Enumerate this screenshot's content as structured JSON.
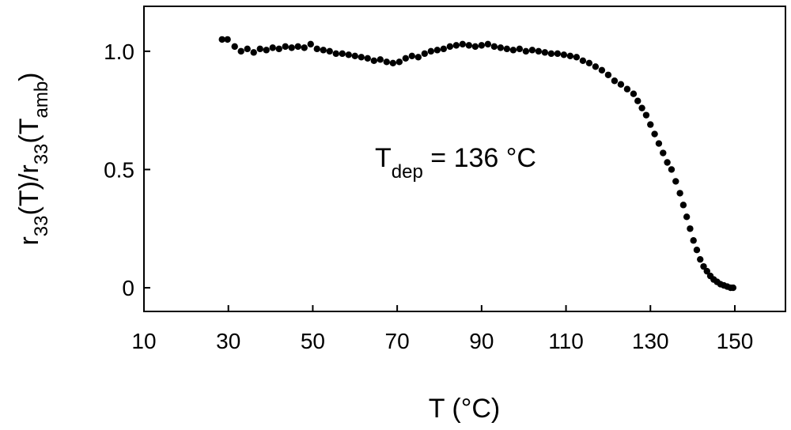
{
  "chart_data": {
    "type": "scatter",
    "title": "",
    "xlabel": "T (°C)",
    "ylabel": {
      "parts": [
        {
          "text": "r",
          "sub": false
        },
        {
          "text": "33",
          "sub": true
        },
        {
          "text": "(T)/r",
          "sub": false
        },
        {
          "text": "33",
          "sub": true
        },
        {
          "text": "(T",
          "sub": false
        },
        {
          "text": "amb",
          "sub": true
        },
        {
          "text": ")",
          "sub": false
        }
      ]
    },
    "annotation": {
      "base": "T",
      "sub": "dep",
      "rest": " = 136 °C"
    },
    "xlim": [
      10,
      162
    ],
    "ylim": [
      -0.1,
      1.19
    ],
    "x_ticks": [
      10,
      30,
      50,
      70,
      90,
      110,
      130,
      150
    ],
    "y_ticks": [
      0,
      0.5,
      1.0
    ],
    "x_tick_labels": [
      "10",
      "30",
      "50",
      "70",
      "90",
      "110",
      "130",
      "150"
    ],
    "y_tick_labels": [
      "0",
      "0.5",
      "1.0"
    ],
    "grid": false,
    "marker_color": "#000000",
    "points": [
      [
        28.5,
        1.05
      ],
      [
        29.8,
        1.05
      ],
      [
        31.5,
        1.02
      ],
      [
        33.0,
        1.0
      ],
      [
        34.5,
        1.01
      ],
      [
        36.0,
        0.995
      ],
      [
        37.5,
        1.01
      ],
      [
        39.0,
        1.005
      ],
      [
        40.5,
        1.015
      ],
      [
        42.0,
        1.01
      ],
      [
        43.5,
        1.02
      ],
      [
        45.0,
        1.015
      ],
      [
        46.5,
        1.02
      ],
      [
        48.0,
        1.015
      ],
      [
        49.5,
        1.03
      ],
      [
        51.0,
        1.01
      ],
      [
        52.5,
        1.005
      ],
      [
        54.0,
        1.0
      ],
      [
        55.5,
        0.99
      ],
      [
        57.0,
        0.99
      ],
      [
        58.5,
        0.985
      ],
      [
        60.0,
        0.98
      ],
      [
        61.5,
        0.975
      ],
      [
        63.0,
        0.97
      ],
      [
        64.5,
        0.96
      ],
      [
        66.0,
        0.965
      ],
      [
        67.5,
        0.955
      ],
      [
        69.0,
        0.95
      ],
      [
        70.5,
        0.955
      ],
      [
        72.0,
        0.97
      ],
      [
        73.5,
        0.98
      ],
      [
        75.0,
        0.975
      ],
      [
        76.5,
        0.99
      ],
      [
        78.0,
        1.0
      ],
      [
        79.5,
        1.005
      ],
      [
        81.0,
        1.01
      ],
      [
        82.5,
        1.02
      ],
      [
        84.0,
        1.025
      ],
      [
        85.5,
        1.03
      ],
      [
        87.0,
        1.025
      ],
      [
        88.5,
        1.02
      ],
      [
        90.0,
        1.025
      ],
      [
        91.5,
        1.03
      ],
      [
        93.0,
        1.02
      ],
      [
        94.5,
        1.015
      ],
      [
        96.0,
        1.01
      ],
      [
        97.5,
        1.005
      ],
      [
        99.0,
        1.01
      ],
      [
        100.5,
        1.0
      ],
      [
        102.0,
        1.005
      ],
      [
        103.5,
        1.0
      ],
      [
        105.0,
        0.995
      ],
      [
        106.5,
        0.99
      ],
      [
        108.0,
        0.99
      ],
      [
        109.5,
        0.985
      ],
      [
        111.0,
        0.98
      ],
      [
        112.5,
        0.975
      ],
      [
        114.0,
        0.96
      ],
      [
        115.5,
        0.95
      ],
      [
        117.0,
        0.935
      ],
      [
        118.5,
        0.92
      ],
      [
        120.0,
        0.9
      ],
      [
        121.5,
        0.875
      ],
      [
        123.0,
        0.86
      ],
      [
        124.5,
        0.84
      ],
      [
        126.0,
        0.82
      ],
      [
        127.0,
        0.79
      ],
      [
        128.0,
        0.76
      ],
      [
        129.0,
        0.73
      ],
      [
        130.0,
        0.69
      ],
      [
        131.0,
        0.65
      ],
      [
        132.0,
        0.61
      ],
      [
        133.0,
        0.57
      ],
      [
        134.0,
        0.53
      ],
      [
        135.0,
        0.5
      ],
      [
        136.0,
        0.45
      ],
      [
        137.0,
        0.4
      ],
      [
        137.8,
        0.35
      ],
      [
        138.6,
        0.3
      ],
      [
        139.4,
        0.25
      ],
      [
        140.2,
        0.2
      ],
      [
        141.0,
        0.16
      ],
      [
        141.8,
        0.12
      ],
      [
        142.6,
        0.09
      ],
      [
        143.4,
        0.07
      ],
      [
        144.2,
        0.05
      ],
      [
        145.0,
        0.035
      ],
      [
        145.8,
        0.025
      ],
      [
        146.6,
        0.015
      ],
      [
        147.4,
        0.01
      ],
      [
        148.2,
        0.005
      ],
      [
        149.0,
        0.0
      ],
      [
        149.6,
        0.0
      ]
    ]
  }
}
